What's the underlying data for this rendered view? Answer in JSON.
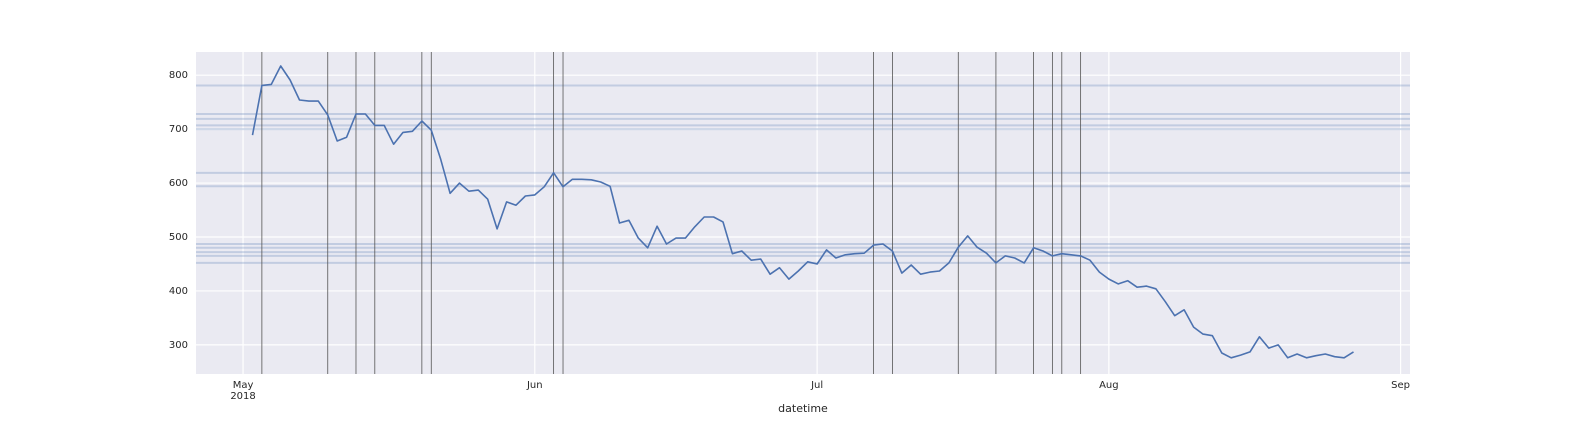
{
  "chart_data": {
    "type": "line",
    "x_label": "datetime",
    "x": [
      "2018-05-02",
      "2018-05-03",
      "2018-05-04",
      "2018-05-05",
      "2018-05-06",
      "2018-05-07",
      "2018-05-08",
      "2018-05-09",
      "2018-05-10",
      "2018-05-11",
      "2018-05-12",
      "2018-05-13",
      "2018-05-14",
      "2018-05-15",
      "2018-05-16",
      "2018-05-17",
      "2018-05-18",
      "2018-05-19",
      "2018-05-20",
      "2018-05-21",
      "2018-05-22",
      "2018-05-23",
      "2018-05-24",
      "2018-05-25",
      "2018-05-26",
      "2018-05-27",
      "2018-05-28",
      "2018-05-29",
      "2018-05-30",
      "2018-05-31",
      "2018-06-01",
      "2018-06-02",
      "2018-06-03",
      "2018-06-04",
      "2018-06-05",
      "2018-06-06",
      "2018-06-07",
      "2018-06-08",
      "2018-06-09",
      "2018-06-10",
      "2018-06-11",
      "2018-06-12",
      "2018-06-13",
      "2018-06-14",
      "2018-06-15",
      "2018-06-16",
      "2018-06-17",
      "2018-06-18",
      "2018-06-19",
      "2018-06-20",
      "2018-06-21",
      "2018-06-22",
      "2018-06-23",
      "2018-06-24",
      "2018-06-25",
      "2018-06-26",
      "2018-06-27",
      "2018-06-28",
      "2018-06-29",
      "2018-06-30",
      "2018-07-01",
      "2018-07-02",
      "2018-07-03",
      "2018-07-04",
      "2018-07-05",
      "2018-07-06",
      "2018-07-07",
      "2018-07-08",
      "2018-07-09",
      "2018-07-10",
      "2018-07-11",
      "2018-07-12",
      "2018-07-13",
      "2018-07-14",
      "2018-07-15",
      "2018-07-16",
      "2018-07-17",
      "2018-07-18",
      "2018-07-19",
      "2018-07-20",
      "2018-07-21",
      "2018-07-22",
      "2018-07-23",
      "2018-07-24",
      "2018-07-25",
      "2018-07-26",
      "2018-07-27",
      "2018-07-28",
      "2018-07-29",
      "2018-07-30",
      "2018-07-31",
      "2018-08-01",
      "2018-08-02",
      "2018-08-03",
      "2018-08-04",
      "2018-08-05",
      "2018-08-06",
      "2018-08-07",
      "2018-08-08",
      "2018-08-09",
      "2018-08-10",
      "2018-08-11",
      "2018-08-12",
      "2018-08-13",
      "2018-08-14",
      "2018-08-15",
      "2018-08-16",
      "2018-08-17",
      "2018-08-18",
      "2018-08-19",
      "2018-08-20",
      "2018-08-21",
      "2018-08-22",
      "2018-08-23",
      "2018-08-24",
      "2018-08-25",
      "2018-08-26",
      "2018-08-27"
    ],
    "series": [
      {
        "color": "#4c72b0",
        "values": [
          689,
          781,
          783,
          817,
          791,
          754,
          752,
          752,
          726,
          678,
          685,
          728,
          728,
          707,
          707,
          672,
          694,
          696,
          715,
          698,
          644,
          581,
          600,
          585,
          587,
          570,
          515,
          565,
          559,
          576,
          578,
          593,
          619,
          593,
          607,
          607,
          606,
          602,
          594,
          526,
          531,
          498,
          480,
          520,
          487,
          498,
          498,
          519,
          537,
          537,
          528,
          469,
          474,
          457,
          459,
          431,
          443,
          422,
          437,
          454,
          450,
          476,
          461,
          467,
          469,
          470,
          485,
          487,
          474,
          433,
          448,
          431,
          435,
          437,
          452,
          481,
          502,
          481,
          470,
          452,
          465,
          461,
          452,
          480,
          474,
          465,
          469,
          467,
          465,
          457,
          435,
          422,
          413,
          419,
          407,
          409,
          404,
          380,
          354,
          365,
          333,
          320,
          317,
          285,
          276,
          281,
          287,
          315,
          294,
          300,
          276,
          283,
          276,
          280,
          283,
          278,
          276,
          287
        ]
      }
    ],
    "hlines": [
      781,
      728,
      719,
      707,
      700,
      619,
      594,
      487,
      480,
      472,
      465,
      452
    ],
    "hline_color": "#4c72b0",
    "vlines": [
      "2018-05-03",
      "2018-05-10",
      "2018-05-13",
      "2018-05-15",
      "2018-05-20",
      "2018-05-21",
      "2018-06-03",
      "2018-06-04",
      "2018-07-07",
      "2018-07-09",
      "2018-07-16",
      "2018-07-20",
      "2018-07-24",
      "2018-07-26",
      "2018-07-27",
      "2018-07-29"
    ],
    "vline_color": "#555555",
    "xlim": [
      "2018-04-26",
      "2018-09-02"
    ],
    "xticks": [
      {
        "value": "2018-05-01",
        "label": "May\n2018"
      },
      {
        "value": "2018-06-01",
        "label": "Jun"
      },
      {
        "value": "2018-07-01",
        "label": "Jul"
      },
      {
        "value": "2018-08-01",
        "label": "Aug"
      },
      {
        "value": "2018-09-01",
        "label": "Sep"
      }
    ],
    "ylim": [
      246,
      843
    ],
    "yticks": [
      300,
      400,
      500,
      600,
      700,
      800
    ],
    "grid": true
  }
}
